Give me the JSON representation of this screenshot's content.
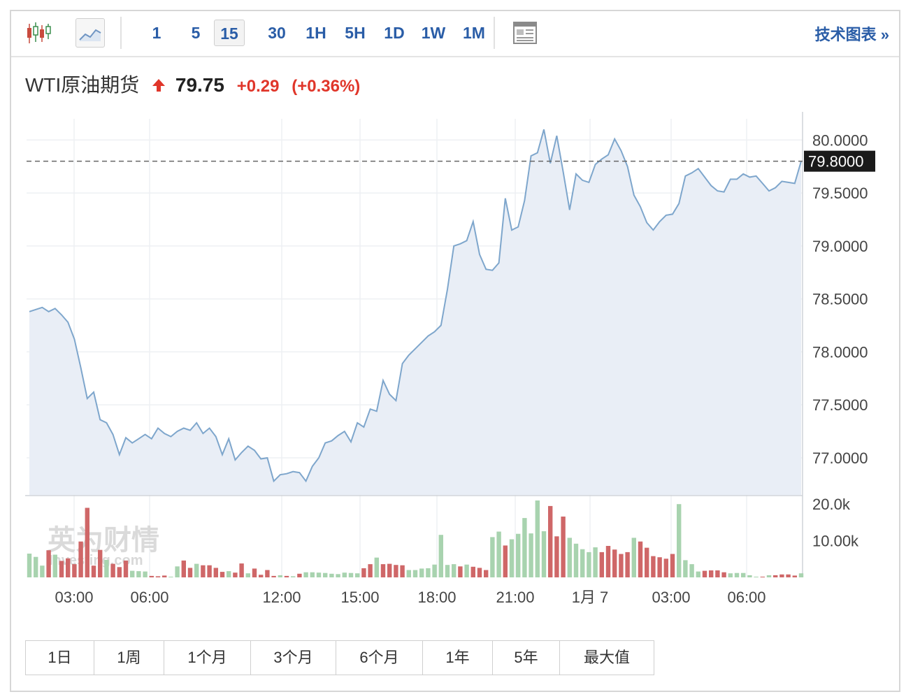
{
  "toolbar": {
    "timeframes": [
      "1",
      "5",
      "15",
      "30",
      "1H",
      "5H",
      "1D",
      "1W",
      "1M"
    ],
    "active_timeframe": "15",
    "tech_link": "技术图表 »"
  },
  "instrument": {
    "name": "WTI原油期货",
    "price": "79.75",
    "change": "+0.29",
    "change_pct": "(+0.36%)",
    "up_color": "#e0362a"
  },
  "ranges": [
    "1日",
    "1周",
    "1个月",
    "3个月",
    "6个月",
    "1年",
    "5年",
    "最大值"
  ],
  "watermark": {
    "cn": "英为财情",
    "en": "Investing.com"
  },
  "chart_data": {
    "type": "area",
    "x_ticks": [
      "03:00",
      "06:00",
      "12:00",
      "15:00",
      "18:00",
      "21:00",
      "1月 7",
      "03:00",
      "06:00"
    ],
    "y_ticks": [
      "80.0000",
      "79.5000",
      "79.0000",
      "78.5000",
      "78.0000",
      "77.5000",
      "77.0000"
    ],
    "ylim": [
      76.65,
      80.2
    ],
    "current_value_label": "79.8000",
    "current_value": 79.8,
    "line_color": "#7ea6cc",
    "fill_color": "#e9eef6",
    "series": [
      {
        "values": [
          78.38,
          78.4,
          78.42,
          78.38,
          78.41,
          78.35,
          78.28,
          78.12,
          77.85,
          77.56,
          77.62,
          77.36,
          77.33,
          77.22,
          77.03,
          77.19,
          77.14,
          77.18,
          77.22,
          77.18,
          77.28,
          77.23,
          77.2,
          77.25,
          77.28,
          77.26,
          77.33,
          77.23,
          77.28,
          77.2,
          77.03,
          77.18,
          76.98,
          77.05,
          77.11,
          77.07,
          76.99,
          77.0,
          76.78,
          76.84,
          76.85,
          76.87,
          76.86,
          76.78,
          76.92,
          77.0,
          77.14,
          77.16,
          77.21,
          77.25,
          77.15,
          77.33,
          77.29,
          77.46,
          77.44,
          77.73,
          77.6,
          77.54,
          77.89,
          77.97,
          78.03,
          78.09,
          78.15,
          78.19,
          78.25,
          78.59,
          79.0,
          79.02,
          79.05,
          79.23,
          78.92,
          78.78,
          78.77,
          78.84,
          79.45,
          79.15,
          79.18,
          79.43,
          79.85,
          79.88,
          80.1,
          79.78,
          80.04,
          79.7,
          79.34,
          79.68,
          79.62,
          79.6,
          79.77,
          79.82,
          79.86,
          80.01,
          79.9,
          79.75,
          79.48,
          79.37,
          79.22,
          79.15,
          79.23,
          79.29,
          79.3,
          79.4,
          79.66,
          79.69,
          79.73,
          79.65,
          79.57,
          79.52,
          79.51,
          79.63,
          79.63,
          79.68,
          79.65,
          79.66,
          79.59,
          79.52,
          79.55,
          79.61,
          79.6,
          79.59,
          79.8
        ]
      }
    ],
    "volume": {
      "y_ticks": [
        "20.0k",
        "10.00k"
      ],
      "max": 21000,
      "up_color": "#a8d3af",
      "down_color": "#cf6768",
      "values": [
        6500,
        5600,
        3200,
        7400,
        6200,
        4500,
        5200,
        3600,
        9800,
        19000,
        3200,
        7500,
        4800,
        3700,
        2800,
        4600,
        1800,
        1700,
        1600,
        400,
        300,
        500,
        200,
        3000,
        4600,
        2600,
        3700,
        3300,
        3300,
        2600,
        1500,
        1700,
        1300,
        3800,
        1100,
        2400,
        700,
        2000,
        400,
        600,
        400,
        300,
        1000,
        1400,
        1400,
        1300,
        1200,
        1000,
        900,
        1300,
        1200,
        1100,
        2500,
        3600,
        5400,
        3600,
        3700,
        3400,
        3300,
        2000,
        2000,
        2400,
        2500,
        3500,
        11600,
        3400,
        3600,
        3000,
        3500,
        2900,
        2600,
        2000,
        11000,
        12500,
        8700,
        10400,
        11900,
        16200,
        12000,
        21000,
        12600,
        19500,
        11200,
        16600,
        10800,
        9200,
        7700,
        6900,
        8200,
        6900,
        8600,
        7600,
        6400,
        6900,
        10800,
        9800,
        8100,
        5800,
        5500,
        5100,
        6400,
        20000,
        4700,
        3600,
        1600,
        1800,
        1900,
        1900,
        1400,
        1100,
        1200,
        1200,
        600,
        200,
        200,
        600,
        600,
        800,
        800,
        500,
        1100
      ],
      "colors": [
        "u",
        "u",
        "u",
        "d",
        "u",
        "d",
        "d",
        "d",
        "d",
        "d",
        "d",
        "d",
        "u",
        "d",
        "d",
        "d",
        "u",
        "u",
        "u",
        "d",
        "d",
        "d",
        "u",
        "u",
        "d",
        "d",
        "u",
        "d",
        "d",
        "d",
        "d",
        "u",
        "d",
        "d",
        "u",
        "d",
        "d",
        "d",
        "d",
        "u",
        "d",
        "u",
        "d",
        "u",
        "u",
        "u",
        "u",
        "u",
        "u",
        "u",
        "u",
        "u",
        "d",
        "d",
        "u",
        "d",
        "d",
        "d",
        "d",
        "u",
        "u",
        "u",
        "u",
        "u",
        "u",
        "u",
        "u",
        "d",
        "u",
        "d",
        "d",
        "d",
        "u",
        "u",
        "d",
        "u",
        "u",
        "u",
        "u",
        "u",
        "u",
        "d",
        "d",
        "d",
        "u",
        "u",
        "u",
        "u",
        "u",
        "d",
        "d",
        "d",
        "d",
        "d",
        "u",
        "d",
        "d",
        "d",
        "d",
        "d",
        "d",
        "u",
        "u",
        "u",
        "u",
        "d",
        "d",
        "d",
        "d",
        "u",
        "u",
        "u",
        "u",
        "u",
        "d",
        "u",
        "d",
        "d",
        "d",
        "d",
        "u"
      ]
    }
  }
}
